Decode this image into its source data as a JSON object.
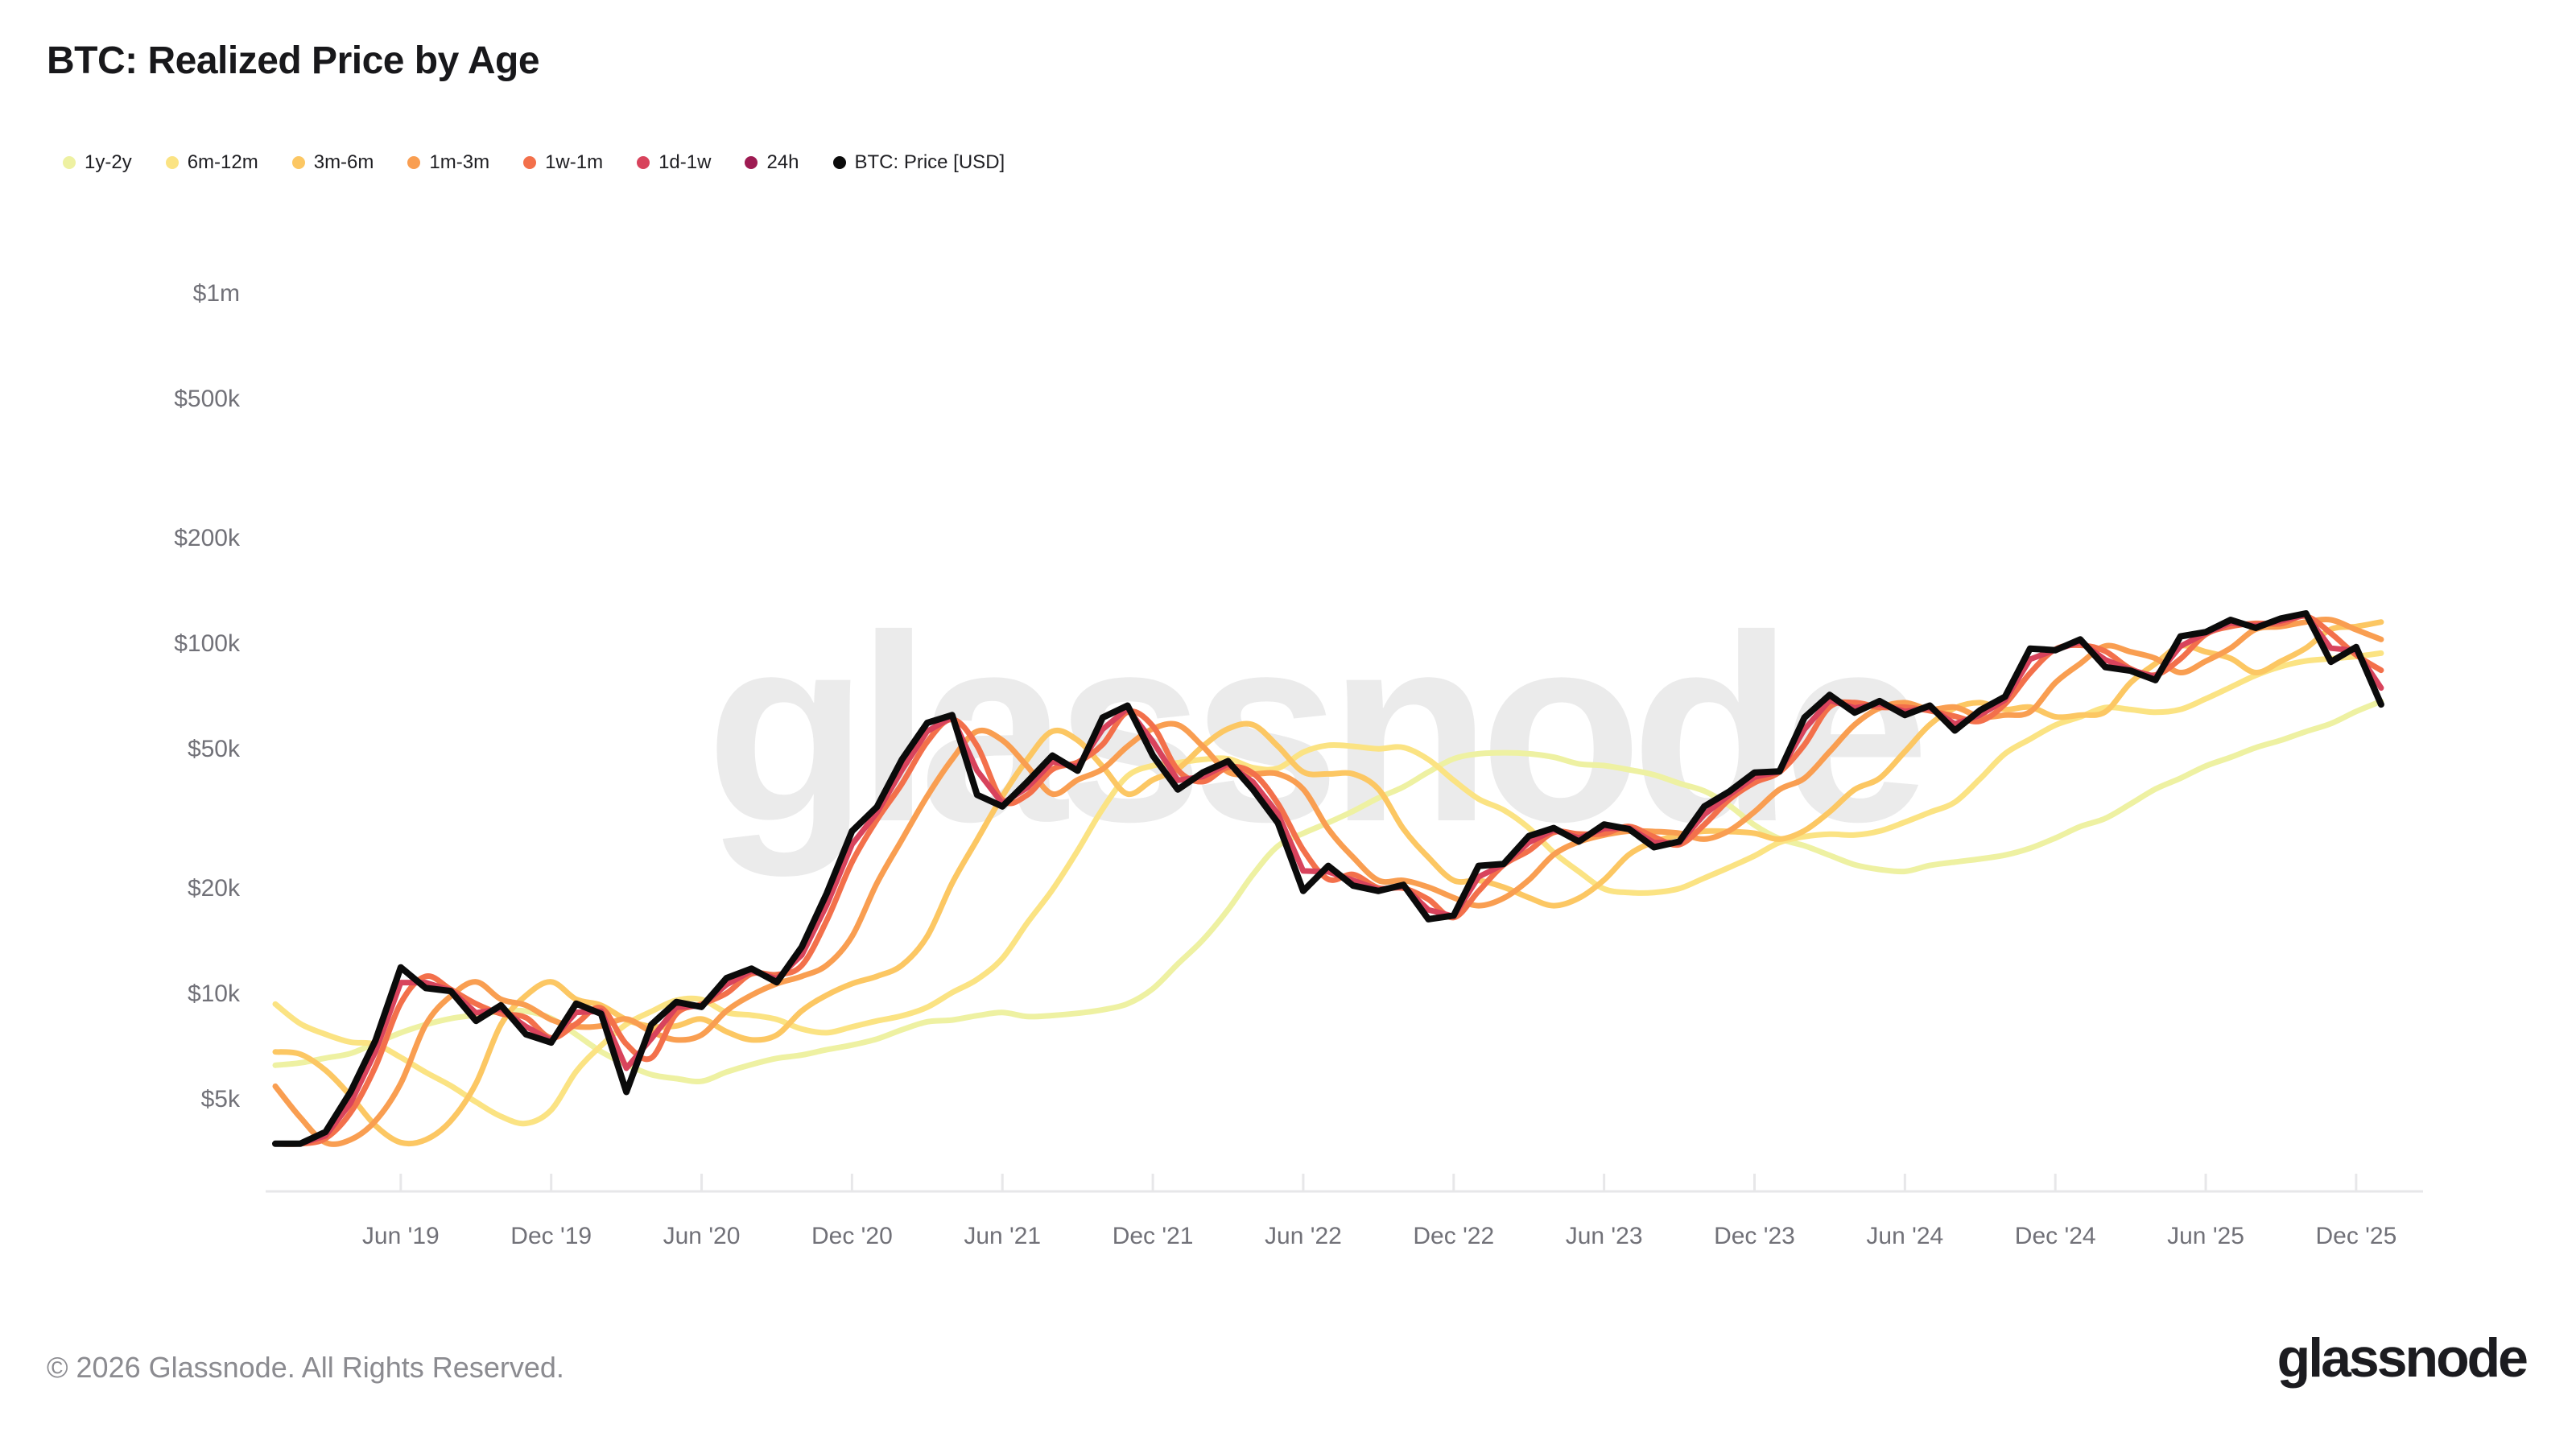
{
  "title": "BTC: Realized Price by Age",
  "watermark": "glassnode",
  "footer": {
    "copyright": "© 2026 Glassnode. All Rights Reserved.",
    "brand": "glassnode"
  },
  "chart_data": {
    "type": "line",
    "title": "BTC: Realized Price by Age",
    "xlabel": "",
    "ylabel": "Price [USD]",
    "y_scale": "log",
    "grid": false,
    "legend_position": "top-left",
    "x_unit": "decimal_year",
    "y_unit": "USD",
    "xlim": [
      2019.0,
      2026.12
    ],
    "ylim": [
      3000,
      2800000
    ],
    "y_ticks": [
      {
        "label": "$1m",
        "value": 1000000
      },
      {
        "label": "$500k",
        "value": 500000
      },
      {
        "label": "$200k",
        "value": 200000
      },
      {
        "label": "$100k",
        "value": 100000
      },
      {
        "label": "$50k",
        "value": 50000
      },
      {
        "label": "$20k",
        "value": 20000
      },
      {
        "label": "$10k",
        "value": 10000
      },
      {
        "label": "$5k",
        "value": 5000
      }
    ],
    "x_ticks": [
      {
        "label": "Jun '19",
        "value": 2019.417
      },
      {
        "label": "Dec '19",
        "value": 2019.917
      },
      {
        "label": "Jun '20",
        "value": 2020.417
      },
      {
        "label": "Dec '20",
        "value": 2020.917
      },
      {
        "label": "Jun '21",
        "value": 2021.417
      },
      {
        "label": "Dec '21",
        "value": 2021.917
      },
      {
        "label": "Jun '22",
        "value": 2022.417
      },
      {
        "label": "Dec '22",
        "value": 2022.917
      },
      {
        "label": "Jun '23",
        "value": 2023.417
      },
      {
        "label": "Dec '23",
        "value": 2023.917
      },
      {
        "label": "Jun '24",
        "value": 2024.417
      },
      {
        "label": "Dec '24",
        "value": 2024.917
      },
      {
        "label": "Jun '25",
        "value": 2025.417
      },
      {
        "label": "Dec '25",
        "value": 2025.917
      }
    ],
    "x": [
      2019.0,
      2019.083,
      2019.167,
      2019.25,
      2019.333,
      2019.417,
      2019.5,
      2019.583,
      2019.667,
      2019.75,
      2019.833,
      2019.917,
      2020.0,
      2020.083,
      2020.167,
      2020.25,
      2020.333,
      2020.417,
      2020.5,
      2020.583,
      2020.667,
      2020.75,
      2020.833,
      2020.917,
      2021.0,
      2021.083,
      2021.167,
      2021.25,
      2021.333,
      2021.417,
      2021.5,
      2021.583,
      2021.667,
      2021.75,
      2021.833,
      2021.917,
      2022.0,
      2022.083,
      2022.167,
      2022.25,
      2022.333,
      2022.417,
      2022.5,
      2022.583,
      2022.667,
      2022.75,
      2022.833,
      2022.917,
      2023.0,
      2023.083,
      2023.167,
      2023.25,
      2023.333,
      2023.417,
      2023.5,
      2023.583,
      2023.667,
      2023.75,
      2023.833,
      2023.917,
      2024.0,
      2024.083,
      2024.167,
      2024.25,
      2024.333,
      2024.417,
      2024.5,
      2024.583,
      2024.667,
      2024.75,
      2024.833,
      2024.917,
      2025.0,
      2025.083,
      2025.167,
      2025.25,
      2025.333,
      2025.417,
      2025.5,
      2025.583,
      2025.667,
      2025.75,
      2025.833,
      2025.917,
      2026.0
    ],
    "series": [
      {
        "name": "1y-2y",
        "color": "#eef1a2",
        "smooth": true,
        "width": 7,
        "values": [
          6200,
          6300,
          6500,
          6700,
          7170,
          7680,
          8100,
          8430,
          8630,
          8830,
          8850,
          8440,
          7590,
          6780,
          6230,
          5830,
          5680,
          5580,
          5930,
          6230,
          6490,
          6630,
          6870,
          7080,
          7370,
          7830,
          8250,
          8350,
          8590,
          8770,
          8540,
          8600,
          8730,
          8930,
          9290,
          10260,
          12070,
          14120,
          17250,
          21730,
          26220,
          28490,
          30570,
          32980,
          35970,
          38660,
          42620,
          46520,
          48070,
          48410,
          48090,
          47000,
          45000,
          44480,
          43280,
          41860,
          39580,
          37630,
          34230,
          30080,
          27510,
          26260,
          24660,
          23180,
          22470,
          22180,
          23070,
          23590,
          24080,
          24700,
          25840,
          27620,
          29780,
          31430,
          34570,
          38130,
          40930,
          44340,
          46990,
          50050,
          52550,
          55630,
          58630,
          63510,
          67880
        ]
      },
      {
        "name": "6m-12m",
        "color": "#fbe383",
        "smooth": true,
        "width": 7,
        "values": [
          9270,
          8150,
          7600,
          7220,
          7120,
          6530,
          5920,
          5420,
          4870,
          4430,
          4230,
          4620,
          5950,
          7050,
          8120,
          8830,
          9500,
          9550,
          8780,
          8620,
          8380,
          7870,
          7680,
          7980,
          8300,
          8580,
          9080,
          10000,
          10900,
          12530,
          15830,
          19650,
          25420,
          33450,
          41530,
          44450,
          45300,
          46320,
          46520,
          43870,
          43700,
          48580,
          50830,
          50500,
          49670,
          50130,
          46300,
          40380,
          35720,
          33220,
          29500,
          25120,
          22170,
          19780,
          19300,
          19300,
          19820,
          21230,
          22770,
          24570,
          26830,
          27880,
          28330,
          28170,
          28920,
          30670,
          32720,
          34970,
          40800,
          48100,
          52930,
          58020,
          61270,
          65130,
          64300,
          63170,
          64330,
          69000,
          74500,
          80500,
          85330,
          88500,
          89830,
          91170,
          93170
        ]
      },
      {
        "name": "3m-6m",
        "color": "#fcc763",
        "smooth": true,
        "width": 7,
        "values": [
          6770,
          6670,
          6000,
          5070,
          4170,
          3730,
          3800,
          4300,
          5500,
          8100,
          9800,
          10730,
          9570,
          9200,
          8370,
          8000,
          8030,
          8400,
          7730,
          7330,
          7570,
          8870,
          9830,
          10600,
          11130,
          11970,
          14470,
          20530,
          27330,
          36370,
          46370,
          55730,
          52530,
          44230,
          36900,
          40500,
          43500,
          50500,
          56670,
          58170,
          50500,
          42670,
          42100,
          42100,
          38100,
          29330,
          24330,
          20900,
          20900,
          20000,
          18670,
          17700,
          18600,
          20970,
          24770,
          26930,
          28170,
          28900,
          28830,
          28500,
          27430,
          29000,
          32830,
          38000,
          40930,
          48770,
          58200,
          64930,
          67270,
          64330,
          65330,
          61330,
          62000,
          63330,
          76670,
          87000,
          97670,
          94000,
          90000,
          82000,
          88330,
          96330,
          109000,
          111000,
          114330
        ]
      },
      {
        "name": "1m-3m",
        "color": "#f99e51",
        "smooth": true,
        "width": 7,
        "values": [
          5400,
          4400,
          3730,
          3800,
          4300,
          5500,
          8100,
          9770,
          10730,
          9570,
          9200,
          8370,
          8000,
          8030,
          8400,
          7730,
          7330,
          7570,
          8870,
          9830,
          10600,
          11130,
          11970,
          14470,
          20530,
          27330,
          36370,
          46370,
          55730,
          52530,
          44230,
          36900,
          40500,
          43500,
          50500,
          56670,
          58170,
          50500,
          42670,
          42100,
          42100,
          38100,
          29330,
          24330,
          20900,
          20900,
          20000,
          18670,
          17700,
          18600,
          20970,
          24770,
          26930,
          28170,
          28900,
          28830,
          28500,
          27430,
          29000,
          32830,
          38000,
          40930,
          48770,
          58200,
          64930,
          67270,
          64330,
          65330,
          61330,
          62000,
          63330,
          76670,
          87000,
          97670,
          94000,
          90000,
          82000,
          88330,
          96330,
          109000,
          111000,
          114330,
          116000,
          108670,
          102000
        ]
      },
      {
        "name": "1w-1m",
        "color": "#f3704b",
        "smooth": true,
        "width": 7,
        "values": [
          3700,
          3700,
          3835,
          4540,
          6145,
          9325,
          11125,
          10210,
          9290,
          8705,
          8480,
          7420,
          8145,
          9030,
          7125,
          6505,
          8685,
          9265,
          9955,
          11315,
          11250,
          11960,
          16065,
          23565,
          31150,
          39480,
          51970,
          60295,
          50615,
          35485,
          36700,
          43375,
          45475,
          51100,
          63250,
          57675,
          43225,
          40025,
          43985,
          42290,
          34625,
          25550,
          21075,
          21740,
          19885,
          19860,
          18455,
          16380,
          19480,
          23135,
          25415,
          28675,
          28375,
          28440,
          29795,
          27815,
          26450,
          30150,
          35575,
          39750,
          42635,
          50990,
          65410,
          67290,
          65250,
          65300,
          63800,
          61500,
          59600,
          66700,
          81700,
          95550,
          98150,
          94350,
          84100,
          80750,
          89700,
          105350,
          111050,
          113300,
          113150,
          118800,
          106150,
          92050,
          83275
        ]
      },
      {
        "name": "1d-1w",
        "color": "#d8435c",
        "smooth": false,
        "width": 7,
        "values": [
          3700,
          3700,
          3900,
          4830,
          6780,
          10680,
          10680,
          10150,
          8750,
          8980,
          8000,
          7300,
          8780,
          8850,
          6080,
          7380,
          9080,
          9180,
          10530,
          11530,
          10950,
          12800,
          17780,
          26480,
          32650,
          43200,
          55750,
          61230,
          43030,
          34680,
          38500,
          45630,
          44130,
          56500,
          64750,
          52130,
          40380,
          41380,
          44980,
          39950,
          32380,
          22250,
          22130,
          20900,
          19680,
          20100,
          17230,
          16500,
          21400,
          23230,
          26830,
          29130,
          27630,
          29400,
          29530,
          26830,
          26750,
          32250,
          36630,
          41250,
          42730,
          56450,
          68350,
          64950,
          66750,
          63500,
          65000,
          58500,
          62000,
          68500,
          89500,
          95250,
          100250,
          89250,
          83500,
          79750,
          97500,
          106250,
          113750,
          111500,
          115250,
          120000,
          96250,
          94750,
          74130
        ]
      },
      {
        "name": "24h",
        "color": "#9e1b52",
        "smooth": false,
        "width": 7,
        "values": [
          3700,
          3700,
          4000,
          5200,
          7300,
          11800,
          10300,
          10100,
          8300,
          9200,
          7600,
          7200,
          9300,
          8700,
          5200,
          8100,
          9400,
          9100,
          11000,
          11700,
          10700,
          13500,
          19200,
          28900,
          33900,
          46300,
          58900,
          62000,
          36700,
          34000,
          40000,
          47500,
          43000,
          61000,
          66000,
          47500,
          38000,
          42500,
          45800,
          38000,
          30500,
          19500,
          23000,
          20200,
          19500,
          20300,
          16200,
          16600,
          23000,
          23300,
          28000,
          29500,
          27000,
          30200,
          29300,
          26000,
          27000,
          34000,
          37500,
          42500,
          42800,
          61000,
          70800,
          63000,
          68000,
          62000,
          66000,
          56000,
          64000,
          70000,
          96000,
          95000,
          102000,
          85000,
          83000,
          78000,
          104000,
          107000,
          116000,
          110000,
          117000,
          121000,
          88000,
          97000,
          66500
        ]
      },
      {
        "name": "BTC: Price [USD]",
        "color": "#0b0b0b",
        "smooth": false,
        "width": 8,
        "values": [
          3700,
          3700,
          4000,
          5200,
          7300,
          11800,
          10300,
          10100,
          8300,
          9200,
          7600,
          7200,
          9300,
          8700,
          5200,
          8100,
          9400,
          9100,
          11000,
          11700,
          10700,
          13500,
          19200,
          28900,
          33900,
          46300,
          58900,
          62000,
          36700,
          34000,
          40000,
          47500,
          43000,
          61000,
          66000,
          47500,
          38000,
          42500,
          45800,
          38000,
          30500,
          19500,
          23000,
          20200,
          19500,
          20300,
          16200,
          16600,
          23000,
          23300,
          28000,
          29500,
          27000,
          30200,
          29300,
          26000,
          27000,
          34000,
          37500,
          42500,
          42800,
          61000,
          70800,
          63000,
          68000,
          62000,
          66000,
          56000,
          64000,
          70000,
          96000,
          95000,
          102000,
          85000,
          83000,
          78000,
          104000,
          107000,
          116000,
          110000,
          117000,
          121000,
          88000,
          97000,
          66500
        ]
      }
    ]
  }
}
